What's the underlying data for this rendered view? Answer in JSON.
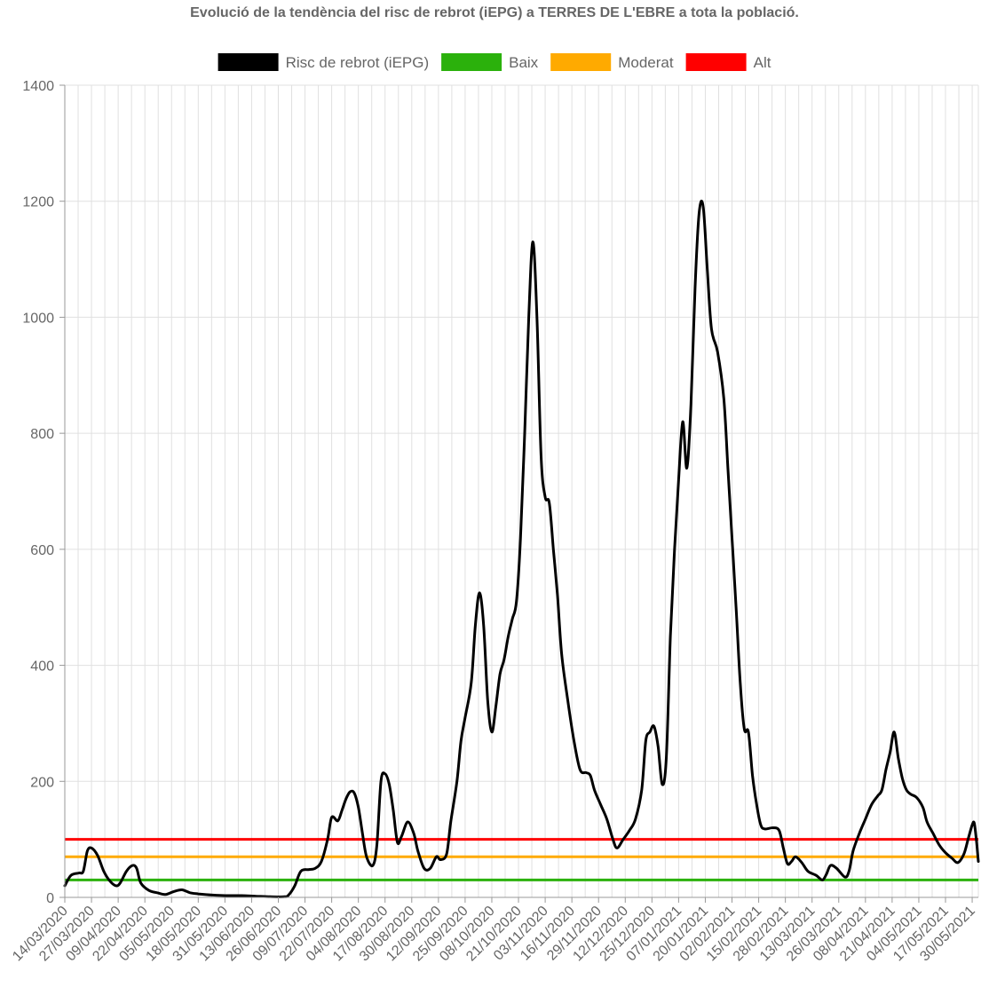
{
  "chart_data": {
    "type": "line",
    "title": "Evolució de la tendència del risc de rebrot (iEPG) a TERRES DE L'EBRE a tota la població.",
    "xlabel": "",
    "ylabel": "",
    "ylim": [
      0,
      1400
    ],
    "yticks": [
      0,
      200,
      400,
      600,
      800,
      1000,
      1200,
      1400
    ],
    "x_start": "14/03/2020",
    "x_end": "02/06/2021",
    "x_tick_labels": [
      "14/03/2020",
      "27/03/2020",
      "09/04/2020",
      "22/04/2020",
      "05/05/2020",
      "18/05/2020",
      "31/05/2020",
      "13/06/2020",
      "26/06/2020",
      "09/07/2020",
      "22/07/2020",
      "04/08/2020",
      "17/08/2020",
      "30/08/2020",
      "12/09/2020",
      "25/09/2020",
      "08/10/2020",
      "21/10/2020",
      "03/11/2020",
      "16/11/2020",
      "29/11/2020",
      "12/12/2020",
      "25/12/2020",
      "07/01/2021",
      "20/01/2021",
      "02/02/2021",
      "15/02/2021",
      "28/02/2021",
      "13/03/2021",
      "26/03/2021",
      "08/04/2021",
      "21/04/2021",
      "04/05/2021",
      "17/05/2021",
      "30/05/2021"
    ],
    "grid": true,
    "legend_position": "top",
    "series": [
      {
        "name": "Risc de rebrot (iEPG)",
        "color": "#000000",
        "points": [
          [
            "14/03/2020",
            20
          ],
          [
            "17/03/2020",
            38
          ],
          [
            "21/03/2020",
            42
          ],
          [
            "23/03/2020",
            45
          ],
          [
            "25/03/2020",
            80
          ],
          [
            "27/03/2020",
            85
          ],
          [
            "30/03/2020",
            72
          ],
          [
            "02/04/2020",
            45
          ],
          [
            "05/04/2020",
            28
          ],
          [
            "08/04/2020",
            20
          ],
          [
            "10/04/2020",
            25
          ],
          [
            "13/04/2020",
            45
          ],
          [
            "16/04/2020",
            55
          ],
          [
            "18/04/2020",
            50
          ],
          [
            "20/04/2020",
            25
          ],
          [
            "24/04/2020",
            12
          ],
          [
            "28/04/2020",
            8
          ],
          [
            "02/05/2020",
            5
          ],
          [
            "06/05/2020",
            10
          ],
          [
            "10/05/2020",
            13
          ],
          [
            "14/05/2020",
            8
          ],
          [
            "18/05/2020",
            6
          ],
          [
            "25/05/2020",
            4
          ],
          [
            "31/05/2020",
            3
          ],
          [
            "08/06/2020",
            3
          ],
          [
            "15/06/2020",
            2
          ],
          [
            "22/06/2020",
            1
          ],
          [
            "29/06/2020",
            1
          ],
          [
            "01/07/2020",
            4
          ],
          [
            "04/07/2020",
            20
          ],
          [
            "07/07/2020",
            45
          ],
          [
            "11/07/2020",
            48
          ],
          [
            "14/07/2020",
            50
          ],
          [
            "17/07/2020",
            62
          ],
          [
            "20/07/2020",
            100
          ],
          [
            "22/07/2020",
            138
          ],
          [
            "25/07/2020",
            132
          ],
          [
            "27/07/2020",
            150
          ],
          [
            "29/07/2020",
            170
          ],
          [
            "31/07/2020",
            182
          ],
          [
            "02/08/2020",
            180
          ],
          [
            "04/08/2020",
            155
          ],
          [
            "06/08/2020",
            110
          ],
          [
            "08/08/2020",
            70
          ],
          [
            "11/08/2020",
            55
          ],
          [
            "13/08/2020",
            90
          ],
          [
            "15/08/2020",
            200
          ],
          [
            "17/08/2020",
            213
          ],
          [
            "19/08/2020",
            195
          ],
          [
            "21/08/2020",
            150
          ],
          [
            "23/08/2020",
            95
          ],
          [
            "25/08/2020",
            105
          ],
          [
            "28/08/2020",
            130
          ],
          [
            "31/08/2020",
            110
          ],
          [
            "02/09/2020",
            80
          ],
          [
            "05/09/2020",
            50
          ],
          [
            "08/09/2020",
            50
          ],
          [
            "11/09/2020",
            70
          ],
          [
            "13/09/2020",
            65
          ],
          [
            "16/09/2020",
            75
          ],
          [
            "18/09/2020",
            130
          ],
          [
            "21/09/2020",
            200
          ],
          [
            "23/09/2020",
            270
          ],
          [
            "25/09/2020",
            310
          ],
          [
            "28/09/2020",
            370
          ],
          [
            "30/09/2020",
            470
          ],
          [
            "02/10/2020",
            525
          ],
          [
            "04/10/2020",
            470
          ],
          [
            "06/10/2020",
            340
          ],
          [
            "08/10/2020",
            285
          ],
          [
            "10/10/2020",
            330
          ],
          [
            "12/10/2020",
            385
          ],
          [
            "14/10/2020",
            410
          ],
          [
            "16/10/2020",
            450
          ],
          [
            "18/10/2020",
            480
          ],
          [
            "20/10/2020",
            510
          ],
          [
            "22/10/2020",
            620
          ],
          [
            "24/10/2020",
            800
          ],
          [
            "26/10/2020",
            1000
          ],
          [
            "28/10/2020",
            1130
          ],
          [
            "30/10/2020",
            1000
          ],
          [
            "01/11/2020",
            760
          ],
          [
            "03/11/2020",
            690
          ],
          [
            "05/11/2020",
            680
          ],
          [
            "07/11/2020",
            600
          ],
          [
            "09/11/2020",
            520
          ],
          [
            "11/11/2020",
            420
          ],
          [
            "14/11/2020",
            340
          ],
          [
            "17/11/2020",
            270
          ],
          [
            "20/11/2020",
            220
          ],
          [
            "23/11/2020",
            215
          ],
          [
            "25/11/2020",
            210
          ],
          [
            "27/11/2020",
            185
          ],
          [
            "30/11/2020",
            160
          ],
          [
            "03/12/2020",
            135
          ],
          [
            "06/12/2020",
            100
          ],
          [
            "08/12/2020",
            85
          ],
          [
            "11/12/2020",
            100
          ],
          [
            "14/12/2020",
            115
          ],
          [
            "17/12/2020",
            135
          ],
          [
            "20/12/2020",
            185
          ],
          [
            "22/12/2020",
            270
          ],
          [
            "24/12/2020",
            285
          ],
          [
            "26/12/2020",
            295
          ],
          [
            "28/12/2020",
            260
          ],
          [
            "30/12/2020",
            195
          ],
          [
            "01/01/2021",
            240
          ],
          [
            "03/01/2021",
            450
          ],
          [
            "05/01/2021",
            600
          ],
          [
            "07/01/2021",
            720
          ],
          [
            "09/01/2021",
            820
          ],
          [
            "11/01/2021",
            740
          ],
          [
            "13/01/2021",
            850
          ],
          [
            "15/01/2021",
            1050
          ],
          [
            "17/01/2021",
            1180
          ],
          [
            "19/01/2021",
            1190
          ],
          [
            "21/01/2021",
            1080
          ],
          [
            "23/01/2021",
            980
          ],
          [
            "26/01/2021",
            940
          ],
          [
            "29/01/2021",
            860
          ],
          [
            "31/01/2021",
            740
          ],
          [
            "02/02/2021",
            620
          ],
          [
            "04/02/2021",
            500
          ],
          [
            "06/02/2021",
            370
          ],
          [
            "08/02/2021",
            290
          ],
          [
            "10/02/2021",
            285
          ],
          [
            "12/02/2021",
            210
          ],
          [
            "14/02/2021",
            160
          ],
          [
            "16/02/2021",
            125
          ],
          [
            "18/02/2021",
            118
          ],
          [
            "22/02/2021",
            120
          ],
          [
            "25/02/2021",
            115
          ],
          [
            "27/02/2021",
            85
          ],
          [
            "01/03/2021",
            58
          ],
          [
            "03/03/2021",
            62
          ],
          [
            "05/03/2021",
            70
          ],
          [
            "08/03/2021",
            60
          ],
          [
            "11/03/2021",
            45
          ],
          [
            "15/03/2021",
            38
          ],
          [
            "18/03/2021",
            30
          ],
          [
            "20/03/2021",
            40
          ],
          [
            "22/03/2021",
            55
          ],
          [
            "25/03/2021",
            50
          ],
          [
            "29/03/2021",
            35
          ],
          [
            "31/03/2021",
            45
          ],
          [
            "02/04/2021",
            80
          ],
          [
            "05/04/2021",
            110
          ],
          [
            "08/04/2021",
            135
          ],
          [
            "11/04/2021",
            160
          ],
          [
            "14/04/2021",
            175
          ],
          [
            "16/04/2021",
            185
          ],
          [
            "18/04/2021",
            220
          ],
          [
            "20/04/2021",
            250
          ],
          [
            "22/04/2021",
            285
          ],
          [
            "24/04/2021",
            240
          ],
          [
            "26/04/2021",
            205
          ],
          [
            "28/04/2021",
            185
          ],
          [
            "30/04/2021",
            178
          ],
          [
            "03/05/2021",
            172
          ],
          [
            "06/05/2021",
            155
          ],
          [
            "08/05/2021",
            130
          ],
          [
            "11/05/2021",
            110
          ],
          [
            "14/05/2021",
            90
          ],
          [
            "17/05/2021",
            77
          ],
          [
            "20/05/2021",
            68
          ],
          [
            "23/05/2021",
            60
          ],
          [
            "26/05/2021",
            75
          ],
          [
            "28/05/2021",
            100
          ],
          [
            "30/05/2021",
            125
          ],
          [
            "31/05/2021",
            128
          ],
          [
            "01/06/2021",
            100
          ],
          [
            "02/06/2021",
            62
          ]
        ]
      },
      {
        "name": "Baix",
        "color": "#2bb10c",
        "constant": 30
      },
      {
        "name": "Moderat",
        "color": "#ffaa00",
        "constant": 70
      },
      {
        "name": "Alt",
        "color": "#ff0000",
        "constant": 100
      }
    ]
  }
}
